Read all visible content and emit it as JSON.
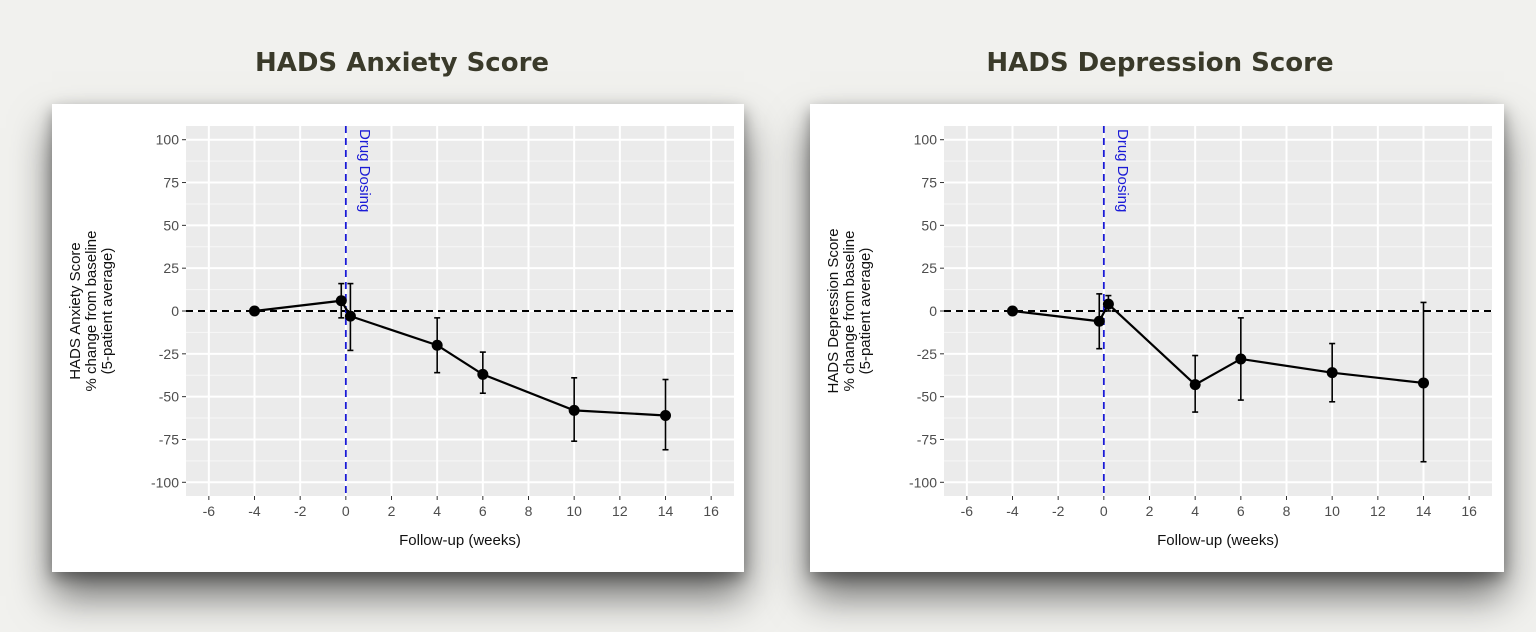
{
  "chart_data": [
    {
      "type": "line",
      "title": "HADS Anxiety Score",
      "xlabel": "Follow-up (weeks)",
      "ylabel": [
        "HADS Anxiety Score",
        "% change from baseline",
        "(5-patient average)"
      ],
      "xlim": [
        -7,
        17
      ],
      "ylim": [
        -108,
        108
      ],
      "xticks": [
        -6,
        -4,
        -2,
        0,
        2,
        4,
        6,
        8,
        10,
        12,
        14,
        16
      ],
      "yticks": [
        100,
        75,
        50,
        25,
        0,
        -25,
        -50,
        -75,
        -100
      ],
      "vline": {
        "x": 0,
        "label": "Drug Dosing",
        "color": "#1a1ad6"
      },
      "hline": {
        "y": 0
      },
      "grid": true,
      "x": [
        -4,
        -0.2,
        0.2,
        4,
        6,
        10,
        14
      ],
      "y": [
        0,
        6,
        -3,
        -20,
        -37,
        -58,
        -61
      ],
      "err_low": [
        0,
        -4,
        -23,
        -36,
        -48,
        -76,
        -81
      ],
      "err_high": [
        0,
        16,
        16,
        -4,
        -24,
        -39,
        -40
      ]
    },
    {
      "type": "line",
      "title": "HADS Depression Score",
      "xlabel": "Follow-up (weeks)",
      "ylabel": [
        "HADS Depression Score",
        "% change from baseline",
        "(5-patient average)"
      ],
      "xlim": [
        -7,
        17
      ],
      "ylim": [
        -108,
        108
      ],
      "xticks": [
        -6,
        -4,
        -2,
        0,
        2,
        4,
        6,
        8,
        10,
        12,
        14,
        16
      ],
      "yticks": [
        100,
        75,
        50,
        25,
        0,
        -25,
        -50,
        -75,
        -100
      ],
      "vline": {
        "x": 0,
        "label": "Drug Dosing",
        "color": "#1a1ad6"
      },
      "hline": {
        "y": 0
      },
      "grid": true,
      "x": [
        -4,
        -0.2,
        0.2,
        4,
        6,
        10,
        14
      ],
      "y": [
        0,
        -6,
        4,
        -43,
        -28,
        -36,
        -42
      ],
      "err_low": [
        0,
        -22,
        0,
        -59,
        -52,
        -53,
        -88
      ],
      "err_high": [
        0,
        10,
        9,
        -26,
        -4,
        -19,
        5
      ]
    }
  ]
}
